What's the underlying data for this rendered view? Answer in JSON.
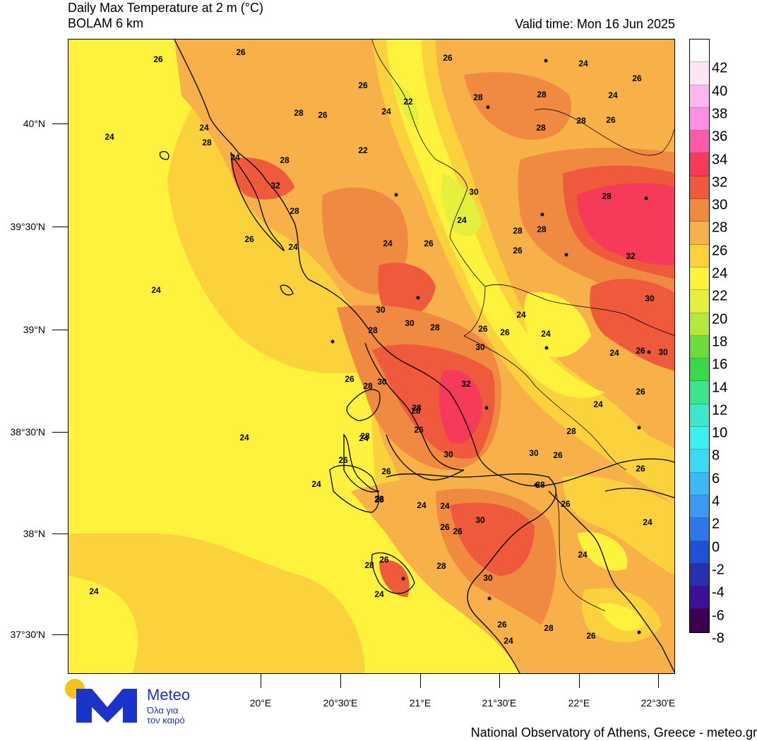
{
  "header": {
    "title_line1": "Daily Max Temperature at 2 m (°C)",
    "title_line2": "BOLAM 6 km",
    "valid_time": "Valid time: Mon 16 Jun 2025"
  },
  "axes": {
    "lat_labels": [
      "40°N",
      "39°30'N",
      "39°N",
      "38°30'N",
      "38°N",
      "37°30'N"
    ],
    "lon_labels": [
      "20°E",
      "20°30'E",
      "21°E",
      "21°30'E",
      "22°E",
      "22°30'E"
    ]
  },
  "colorbar": {
    "labels": [
      "42",
      "40",
      "38",
      "36",
      "34",
      "32",
      "30",
      "28",
      "26",
      "24",
      "22",
      "20",
      "18",
      "16",
      "14",
      "12",
      "10",
      "8",
      "6",
      "4",
      "2",
      "0",
      "-2",
      "-4",
      "-6",
      "-8"
    ],
    "colors": [
      "#ffffff",
      "#ffe6f7",
      "#ffb6ee",
      "#ff8ee4",
      "#ff5aa8",
      "#f53a5a",
      "#f05a3c",
      "#f08a40",
      "#f8b048",
      "#fcd23c",
      "#fff23c",
      "#e4f03c",
      "#b4e83c",
      "#6cdc3c",
      "#3cd84c",
      "#3ce48c",
      "#3ce8c8",
      "#3cf0f0",
      "#3cd8f4",
      "#3cb8f4",
      "#3c98f0",
      "#2c78e8",
      "#2050d8",
      "#2830b0",
      "#3c1098",
      "#3c0050"
    ]
  },
  "contour_labels": [
    {
      "t": "26"
    },
    {
      "t": "26"
    },
    {
      "t": "26"
    },
    {
      "t": "24"
    },
    {
      "t": "28"
    },
    {
      "t": "24"
    },
    {
      "t": "26"
    },
    {
      "t": "26"
    },
    {
      "t": "24"
    },
    {
      "t": "22"
    },
    {
      "t": "28"
    },
    {
      "t": "28"
    },
    {
      "t": "28"
    },
    {
      "t": "26"
    },
    {
      "t": "24"
    },
    {
      "t": "24"
    },
    {
      "t": "26"
    },
    {
      "t": "28"
    },
    {
      "t": "28"
    },
    {
      "t": "24"
    },
    {
      "t": "28"
    },
    {
      "t": "22"
    },
    {
      "t": "30"
    },
    {
      "t": "32"
    },
    {
      "t": "28"
    },
    {
      "t": "28"
    },
    {
      "t": "24"
    },
    {
      "t": "24"
    },
    {
      "t": "24"
    },
    {
      "t": "26"
    },
    {
      "t": "26"
    },
    {
      "t": "26"
    },
    {
      "t": "28"
    },
    {
      "t": "28"
    },
    {
      "t": "32"
    },
    {
      "t": "24"
    },
    {
      "t": "30"
    },
    {
      "t": "30"
    },
    {
      "t": "28"
    },
    {
      "t": "24"
    },
    {
      "t": "26"
    },
    {
      "t": "28"
    },
    {
      "t": "30"
    },
    {
      "t": "26"
    },
    {
      "t": "24"
    },
    {
      "t": "28"
    },
    {
      "t": "30"
    },
    {
      "t": "30"
    },
    {
      "t": "24"
    },
    {
      "t": "26"
    },
    {
      "t": "30"
    },
    {
      "t": "32"
    },
    {
      "t": "26"
    },
    {
      "t": "28"
    },
    {
      "t": "26"
    },
    {
      "t": "24"
    },
    {
      "t": "28"
    },
    {
      "t": "26"
    },
    {
      "t": "24"
    },
    {
      "t": "28"
    },
    {
      "t": "26"
    },
    {
      "t": "30"
    },
    {
      "t": "30"
    },
    {
      "t": "26"
    },
    {
      "t": "26"
    },
    {
      "t": "28"
    },
    {
      "t": "24"
    },
    {
      "t": "26"
    },
    {
      "t": "24"
    },
    {
      "t": "28"
    },
    {
      "t": "24"
    },
    {
      "t": "28"
    },
    {
      "t": "28"
    },
    {
      "t": "26"
    },
    {
      "t": "30"
    },
    {
      "t": "26"
    },
    {
      "t": "26"
    },
    {
      "t": "24"
    },
    {
      "t": "24"
    },
    {
      "t": "28"
    },
    {
      "t": "28"
    },
    {
      "t": "26"
    },
    {
      "t": "30"
    },
    {
      "t": "24"
    },
    {
      "t": "24"
    },
    {
      "t": "24"
    },
    {
      "t": "26"
    },
    {
      "t": "28"
    },
    {
      "t": "26"
    },
    {
      "t": "24"
    }
  ],
  "logo": {
    "brand": "Meteo",
    "tagline_1": "Όλα για",
    "tagline_2": "τον καιρό"
  },
  "footer": "National Observatory of Athens, Greece - meteo.gr"
}
